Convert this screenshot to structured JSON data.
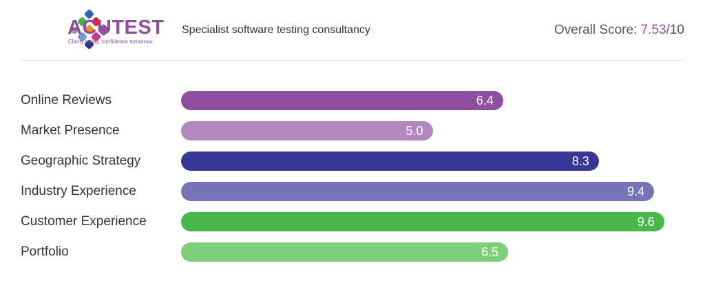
{
  "header": {
    "brand": "ACUTEST",
    "tagline": "Clarity today, confidence tomorrow.",
    "subtitle": "Specialist software testing consultancy",
    "score_label": "Overall Score:",
    "score_value": "7.53",
    "score_max": "/10"
  },
  "chart_data": {
    "type": "bar",
    "orientation": "horizontal",
    "xlim": [
      0,
      10
    ],
    "categories": [
      "Online Reviews",
      "Market Presence",
      "Geographic Strategy",
      "Industry Experience",
      "Customer Experience",
      "Portfolio"
    ],
    "values": [
      6.4,
      5.0,
      8.3,
      9.4,
      9.6,
      6.5
    ],
    "labels": [
      "6.4",
      "5.0",
      "8.3",
      "9.4",
      "9.6",
      "6.5"
    ],
    "colors": [
      "#8e4f9f",
      "#b388bf",
      "#383894",
      "#7574b6",
      "#48b84a",
      "#7fcf7a"
    ]
  }
}
